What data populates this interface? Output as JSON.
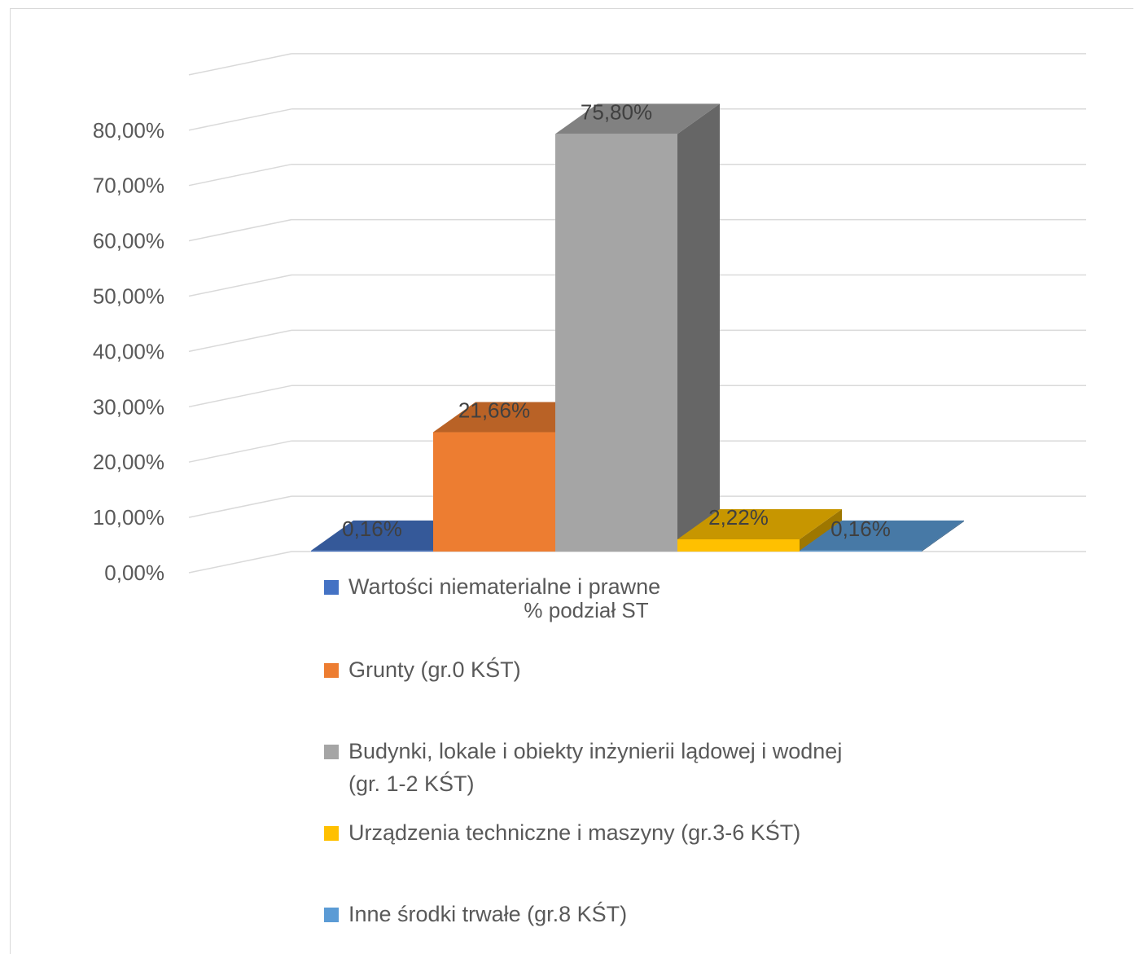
{
  "chart_data": {
    "type": "bar",
    "title": "",
    "axis_title": "% podział ST",
    "ylim": [
      0,
      80
    ],
    "y_ticks": [
      "0,00%",
      "10,00%",
      "20,00%",
      "30,00%",
      "40,00%",
      "50,00%",
      "60,00%",
      "70,00%",
      "80,00%"
    ],
    "series": [
      {
        "name": "Wartości niematerialne i prawne",
        "value": 0.16,
        "label": "0,16%",
        "color": "#4472C4"
      },
      {
        "name": "Grunty (gr.0 KŚT)",
        "value": 21.66,
        "label": "21,66%",
        "color": "#ED7D31"
      },
      {
        "name": "Budynki, lokale i obiekty inżynierii lądowej i wodnej (gr. 1-2 KŚT)",
        "value": 75.8,
        "label": "75,80%",
        "color": "#A5A5A5"
      },
      {
        "name": "Urządzenia techniczne i maszyny (gr.3-6 KŚT)",
        "value": 2.22,
        "label": "2,22%",
        "color": "#FFC000"
      },
      {
        "name": "Inne środki trwałe (gr.8 KŚT)",
        "value": 0.16,
        "label": "0,16%",
        "color": "#5B9BD5"
      }
    ],
    "grid": true,
    "legend_position": "bottom"
  }
}
